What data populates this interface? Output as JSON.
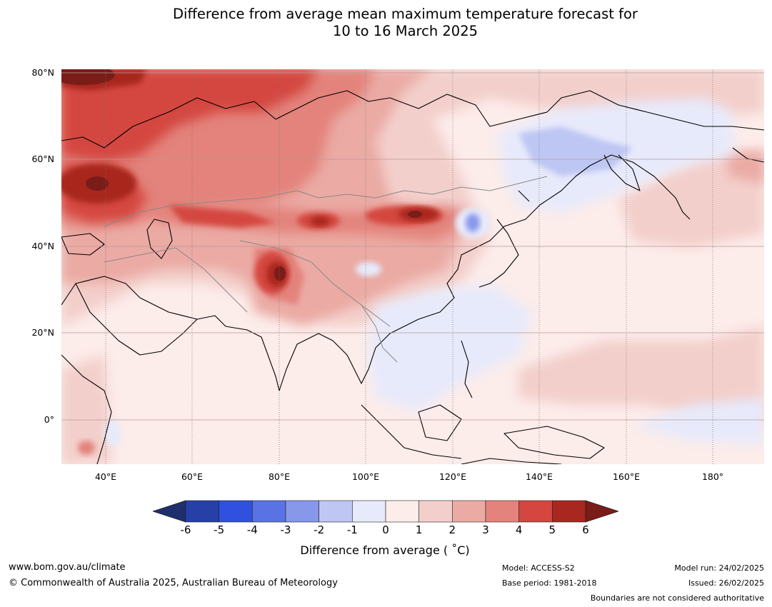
{
  "title": {
    "line1": "Difference from average mean maximum temperature forecast for",
    "line2": "10 to 16 March 2025"
  },
  "map": {
    "lat_labels": [
      "80°N",
      "60°N",
      "40°N",
      "20°N",
      "0°"
    ],
    "lon_labels": [
      "40°E",
      "60°E",
      "80°E",
      "100°E",
      "120°E",
      "140°E",
      "160°E",
      "180°"
    ],
    "gridlines": true,
    "region": "Asia and western Pacific",
    "anomaly_regions": [
      {
        "area": "northern Russia / Barents coast",
        "anomaly": "+4 to +6"
      },
      {
        "area": "western Russia / Volga",
        "anomaly": "+5 to +6"
      },
      {
        "area": "Kazakhstan",
        "anomaly": "+4 to +5"
      },
      {
        "area": "western Mongolia / Altai",
        "anomaly": "+5 to +6"
      },
      {
        "area": "Inner Mongolia",
        "anomaly": "+5 to +6"
      },
      {
        "area": "western Tibetan Plateau",
        "anomaly": "+5 to +6"
      },
      {
        "area": "eastern Siberia",
        "anomaly": "-1 to -2"
      },
      {
        "area": "north-east China / Korea",
        "anomaly": "-1 to -3"
      },
      {
        "area": "South China Sea / Indochina",
        "anomaly": "0 to -1"
      },
      {
        "area": "western Pacific near equator",
        "anomaly": "0 to -1"
      }
    ]
  },
  "colorbar": {
    "ticks": [
      "-6",
      "-5",
      "-4",
      "-3",
      "-2",
      "-1",
      "0",
      "1",
      "2",
      "3",
      "4",
      "5",
      "6"
    ],
    "label": "Difference from average ( ˚C)",
    "extend": "both",
    "colors": {
      "below": "#1e2f6e",
      "bins": [
        "#2640a8",
        "#3050e0",
        "#5a73e4",
        "#8797ea",
        "#bec6f3",
        "#e7eafb",
        "#fcecea",
        "#f3cfcb",
        "#ebaaa4",
        "#e3837b",
        "#d4463f",
        "#a8271f"
      ],
      "above": "#7a1c17"
    }
  },
  "footer": {
    "website": "www.bom.gov.au/climate",
    "copyright": "© Commonwealth of Australia 2025, Australian Bureau of Meteorology",
    "model": "Model: ACCESS-S2",
    "base_period": "Base period: 1981-2018",
    "model_run": "Model run: 24/02/2025",
    "issued": "Issued: 26/02/2025",
    "disclaimer": "Boundaries are not considered authoritative"
  }
}
